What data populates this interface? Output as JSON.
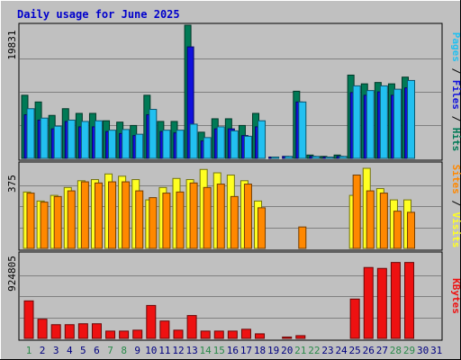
{
  "title": "Daily usage for June 2025",
  "colors": {
    "background": "#c0c0c0",
    "title": "#0000cc",
    "hits": "#007a56",
    "files": "#1111dd",
    "pages": "#22c0f0",
    "visits": "#ffff22",
    "sites": "#ff8800",
    "kbytes": "#ee1111",
    "weekend_label": "#2a8a4a",
    "weekday_label": "#000080"
  },
  "chart_data": {
    "type": "bar",
    "days": [
      "1",
      "2",
      "3",
      "4",
      "5",
      "6",
      "7",
      "8",
      "9",
      "10",
      "11",
      "12",
      "13",
      "14",
      "15",
      "16",
      "17",
      "18",
      "19",
      "20",
      "21",
      "22",
      "23",
      "24",
      "25",
      "26",
      "27",
      "28",
      "29",
      "30",
      "31"
    ],
    "weekend_days": [
      "1",
      "7",
      "8",
      "14",
      "15",
      "21",
      "22",
      "28",
      "29"
    ],
    "panels": [
      {
        "id": "hits_files_pages",
        "max_label": "19831",
        "ymax": 19831,
        "legend": [
          "Pages",
          "Files",
          "Hits"
        ],
        "series": [
          {
            "name": "Hits",
            "color": "hits",
            "values": [
              9400,
              8400,
              6400,
              7400,
              6700,
              6700,
              5600,
              5400,
              4900,
              9400,
              5500,
              5500,
              19831,
              3900,
              5900,
              5900,
              4900,
              6700,
              0,
              0,
              10000,
              500,
              300,
              500,
              12400,
              11100,
              11300,
              11100,
              12100,
              0,
              0
            ]
          },
          {
            "name": "Files",
            "color": "files",
            "values": [
              6500,
              5700,
              4400,
              5500,
              4700,
              4700,
              4000,
              3700,
              3400,
              6500,
              4000,
              3800,
              16600,
              2600,
              4400,
              4400,
              3400,
              4700,
              150,
              300,
              8400,
              300,
              180,
              300,
              9800,
              9400,
              9900,
              9400,
              10500,
              0,
              0
            ]
          },
          {
            "name": "Pages",
            "color": "pages",
            "values": [
              7400,
              6000,
              4800,
              5700,
              5500,
              5600,
              4200,
              4300,
              3600,
              7300,
              4200,
              4200,
              5100,
              3100,
              4700,
              4100,
              3300,
              5600,
              150,
              300,
              8400,
              300,
              180,
              300,
              10800,
              10100,
              10800,
              10300,
              11600,
              0,
              0
            ]
          }
        ]
      },
      {
        "id": "visits_sites",
        "max_label": "375",
        "ymax": 375,
        "legend": [
          "Sites",
          "Visits"
        ],
        "series": [
          {
            "name": "Visits",
            "color": "visits",
            "values": [
              250,
              210,
              235,
              270,
              300,
              305,
              330,
              320,
              305,
              215,
              270,
              310,
              305,
              350,
              335,
              325,
              300,
              210,
              0,
              0,
              0,
              0,
              0,
              0,
              235,
              355,
              265,
              215,
              215,
              0,
              0
            ]
          },
          {
            "name": "Sites",
            "color": "sites",
            "values": [
              245,
              205,
              230,
              255,
              295,
              290,
              295,
              295,
              255,
              225,
              245,
              250,
              290,
              270,
              285,
              230,
              285,
              180,
              0,
              0,
              95,
              0,
              0,
              0,
              325,
              255,
              245,
              165,
              160,
              0,
              0
            ]
          }
        ]
      },
      {
        "id": "kbytes",
        "max_label": "924805",
        "ymax": 924805,
        "legend": [
          "KBytes"
        ],
        "series": [
          {
            "name": "KBytes",
            "color": "kbytes",
            "values": [
              410000,
              210000,
              150000,
              150000,
              160000,
              160000,
              80000,
              80000,
              90000,
              360000,
              190000,
              90000,
              250000,
              80000,
              80000,
              80000,
              100000,
              50000,
              0,
              15000,
              30000,
              0,
              0,
              0,
              430000,
              775000,
              765000,
              830000,
              830000,
              0,
              0
            ]
          }
        ]
      }
    ]
  }
}
